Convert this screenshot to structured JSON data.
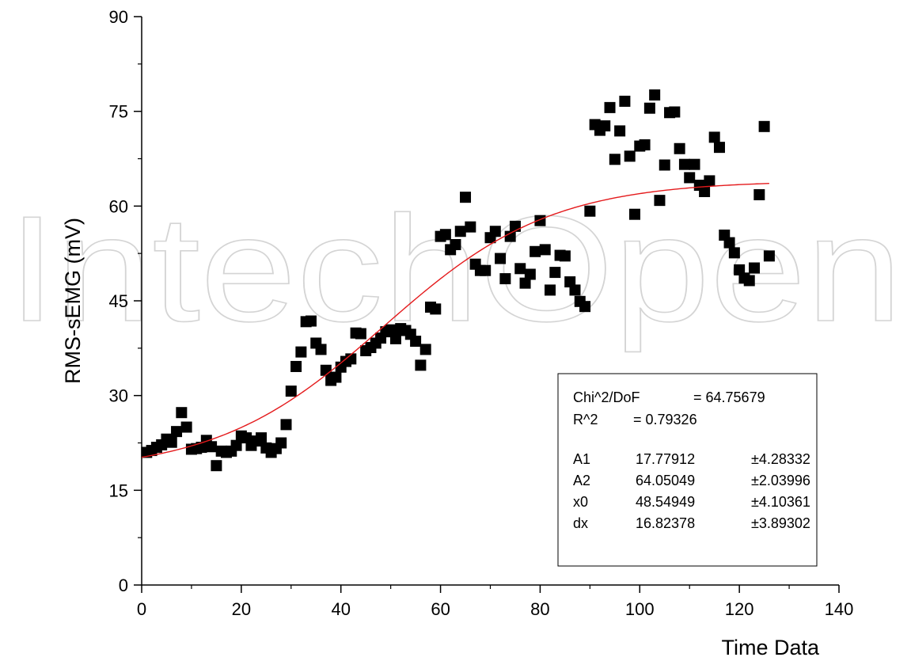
{
  "watermark": "IntechOpen",
  "chart_data": {
    "type": "scatter",
    "xlabel": "Time Data",
    "ylabel": "RMS-sEMG (mV)",
    "xlim": [
      0,
      140
    ],
    "ylim": [
      0,
      90
    ],
    "x_ticks": [
      0,
      20,
      40,
      60,
      80,
      100,
      120,
      140
    ],
    "y_ticks": [
      0,
      15,
      30,
      45,
      60,
      75,
      90
    ],
    "grid": false,
    "series": [
      {
        "marker": "square",
        "color": "#000000",
        "x": [
          1,
          2,
          3,
          4,
          5,
          6,
          7,
          8,
          9,
          10,
          11,
          12,
          13,
          14,
          15,
          16,
          17,
          18,
          19,
          20,
          21,
          22,
          23,
          24,
          25,
          26,
          27,
          28,
          29,
          30,
          31,
          32,
          33,
          34,
          35,
          36,
          37,
          38,
          39,
          40,
          41,
          42,
          43,
          44,
          45,
          46,
          47,
          48,
          49,
          50,
          51,
          52,
          53,
          54,
          55,
          56,
          57,
          58,
          59,
          60,
          61,
          62,
          63,
          64,
          65,
          66,
          67,
          68,
          69,
          70,
          71,
          72,
          73,
          74,
          75,
          76,
          77,
          78,
          79,
          80,
          81,
          82,
          83,
          84,
          85,
          86,
          87,
          88,
          89,
          90,
          91,
          92,
          93,
          94,
          95,
          96,
          97,
          98,
          99,
          100,
          101,
          102,
          103,
          104,
          105,
          106,
          107,
          108,
          109,
          110,
          111,
          112,
          113,
          114,
          115,
          116,
          117,
          118,
          119,
          120,
          121,
          122,
          123,
          124,
          125,
          126
        ],
        "y": [
          21.0,
          21.3,
          21.8,
          22.2,
          23.1,
          22.6,
          24.3,
          27.3,
          25.0,
          21.5,
          21.6,
          21.8,
          22.9,
          21.9,
          18.9,
          21.2,
          21.0,
          21.2,
          22.1,
          23.6,
          23.3,
          22.1,
          22.8,
          23.3,
          21.7,
          21.0,
          21.6,
          22.5,
          25.4,
          30.7,
          34.6,
          36.9,
          41.7,
          41.8,
          38.3,
          37.3,
          34.0,
          32.4,
          32.9,
          34.5,
          35.4,
          35.8,
          39.9,
          39.8,
          37.1,
          37.6,
          38.3,
          39.1,
          40.1,
          40.4,
          39.0,
          40.6,
          40.3,
          39.7,
          38.6,
          34.8,
          37.3,
          44.0,
          43.7,
          55.2,
          55.5,
          53.1,
          53.9,
          56.0,
          61.4,
          56.7,
          50.8,
          49.8,
          49.8,
          55.0,
          56.0,
          51.7,
          48.5,
          55.2,
          56.8,
          50.1,
          47.8,
          49.2,
          52.8,
          57.7,
          53.1,
          46.7,
          49.5,
          52.2,
          52.1,
          48.0,
          46.7,
          44.9,
          44.1,
          59.2,
          72.9,
          72.0,
          72.7,
          75.6,
          67.4,
          71.9,
          76.6,
          67.9,
          58.7,
          69.5,
          69.7,
          75.5,
          77.6,
          60.9,
          66.5,
          74.8,
          74.9,
          69.1,
          66.6,
          64.5,
          66.6,
          63.3,
          62.3,
          64.0,
          70.9,
          69.3,
          55.4,
          54.2,
          52.6,
          49.9,
          48.6,
          48.2,
          50.2,
          61.8,
          72.6,
          52.1
        ]
      }
    ],
    "fit_curve": {
      "color": "#e41a1c",
      "model": "boltzmann",
      "x_range": [
        0,
        126
      ],
      "params": {
        "A1": 17.77912,
        "A2": 64.05049,
        "x0": 48.54949,
        "dx": 16.82378
      }
    },
    "stats_box": {
      "placement": "bottom-right",
      "chi_label": "Chi^2/DoF",
      "chi_value": "= 64.75679",
      "r2_label": "R^2",
      "r2_value": "=  0.79326",
      "rows": [
        {
          "name": "A1",
          "value": "17.77912",
          "error": "±4.28332"
        },
        {
          "name": "A2",
          "value": "64.05049",
          "error": "±2.03996"
        },
        {
          "name": "x0",
          "value": "48.54949",
          "error": "±4.10361"
        },
        {
          "name": "dx",
          "value": "16.82378",
          "error": "±3.89302"
        }
      ]
    }
  }
}
